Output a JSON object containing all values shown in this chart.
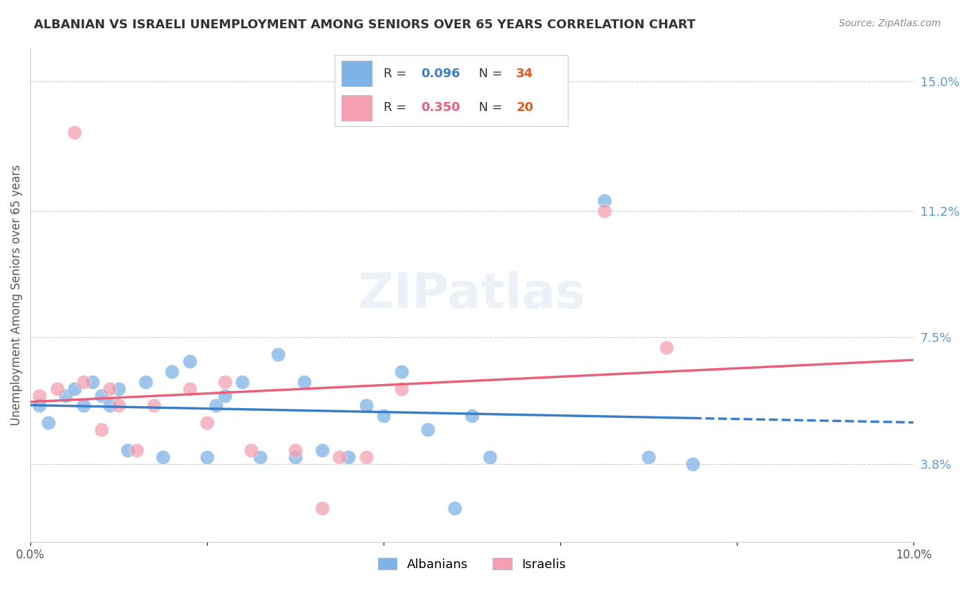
{
  "title": "ALBANIAN VS ISRAELI UNEMPLOYMENT AMONG SENIORS OVER 65 YEARS CORRELATION CHART",
  "source": "Source: ZipAtlas.com",
  "ylabel": "Unemployment Among Seniors over 65 years",
  "x_tick_positions": [
    0.0,
    0.02,
    0.04,
    0.06,
    0.08,
    0.1
  ],
  "x_tick_labels": [
    "0.0%",
    "",
    "",
    "",
    "",
    "10.0%"
  ],
  "y_tick_labels_right": [
    "3.8%",
    "7.5%",
    "11.2%",
    "15.0%"
  ],
  "y_tick_values": [
    0.038,
    0.075,
    0.112,
    0.15
  ],
  "xlim": [
    0.0,
    0.1
  ],
  "ylim": [
    0.015,
    0.16
  ],
  "albanians_R": "0.096",
  "albanians_N": "34",
  "israelis_R": "0.350",
  "israelis_N": "20",
  "albanian_color": "#7EB3E8",
  "israeli_color": "#F4A0B0",
  "albanian_line_color": "#3B7EC8",
  "israeli_line_color": "#E8607A",
  "background_color": "#FFFFFF",
  "watermark": "ZIPatlas",
  "albanians_x": [
    0.001,
    0.002,
    0.004,
    0.005,
    0.006,
    0.007,
    0.008,
    0.009,
    0.01,
    0.011,
    0.013,
    0.015,
    0.016,
    0.018,
    0.02,
    0.021,
    0.022,
    0.024,
    0.026,
    0.028,
    0.03,
    0.031,
    0.033,
    0.036,
    0.038,
    0.04,
    0.042,
    0.045,
    0.048,
    0.05,
    0.052,
    0.065,
    0.07,
    0.075
  ],
  "albanians_y": [
    0.055,
    0.05,
    0.058,
    0.06,
    0.055,
    0.062,
    0.058,
    0.055,
    0.06,
    0.042,
    0.062,
    0.04,
    0.065,
    0.068,
    0.04,
    0.055,
    0.058,
    0.062,
    0.04,
    0.07,
    0.04,
    0.062,
    0.042,
    0.04,
    0.055,
    0.052,
    0.065,
    0.048,
    0.025,
    0.052,
    0.04,
    0.115,
    0.04,
    0.038
  ],
  "israelis_x": [
    0.001,
    0.003,
    0.005,
    0.006,
    0.008,
    0.009,
    0.01,
    0.012,
    0.014,
    0.018,
    0.02,
    0.022,
    0.025,
    0.03,
    0.033,
    0.035,
    0.038,
    0.042,
    0.065,
    0.072
  ],
  "israelis_y": [
    0.058,
    0.06,
    0.135,
    0.062,
    0.048,
    0.06,
    0.055,
    0.042,
    0.055,
    0.06,
    0.05,
    0.062,
    0.042,
    0.042,
    0.025,
    0.04,
    0.04,
    0.06,
    0.112,
    0.072
  ]
}
